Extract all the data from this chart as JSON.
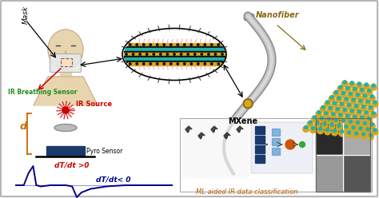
{
  "bg_color": "#f0f0f0",
  "border_color": "#aaaaaa",
  "labels": {
    "mask": "Mask",
    "ir_breathing": "IR Breathing Sensor",
    "ir_source": "IR Source",
    "pyro_sensor": "Pyro Sensor",
    "d_label": "d",
    "nanofiber": "Nanofiber",
    "mxene": "MXene",
    "ml_label": "ML aided IR data classification",
    "dTdt_pos": "dT/dt >0",
    "dTdt_neg": "dT/dt< 0"
  },
  "colors": {
    "red_text": "#cc0000",
    "orange_text": "#b86000",
    "blue_signal": "#000088",
    "dark_blue_box": "#1a3a6b",
    "orange_d": "#cc6600",
    "nanofiber_color": "#8B6914",
    "mxene_teal": "#008080",
    "mxene_gold": "#DAA520",
    "arrow_color": "#cc0000",
    "skin_color": "#e8d5b0",
    "outline_color": "#c8b090",
    "signal_red": "#cc0000",
    "fiber_gray": "#999999",
    "fiber_light": "#bbbbbb"
  },
  "layers": {
    "colors": [
      "#DAA520",
      "#111111",
      "#20b2aa",
      "#111111",
      "#DAA520",
      "#111111",
      "#20b2aa",
      "#111111",
      "#DAA520"
    ],
    "heights": [
      3.5,
      2.5,
      3.5,
      2.5,
      3.5,
      2.5,
      3.5,
      2.5,
      3.5
    ]
  },
  "pyro_signal": {
    "x": [
      0.0,
      0.05,
      0.08,
      0.11,
      0.13,
      0.16,
      0.22,
      0.32,
      0.36,
      0.39,
      0.42,
      0.48,
      0.58,
      0.7,
      0.85,
      1.0
    ],
    "y": [
      0.0,
      0.0,
      0.5,
      0.8,
      0.0,
      -0.05,
      0.0,
      0.0,
      -0.05,
      -0.5,
      -0.3,
      -0.15,
      -0.05,
      0.0,
      0.0,
      0.0
    ]
  }
}
